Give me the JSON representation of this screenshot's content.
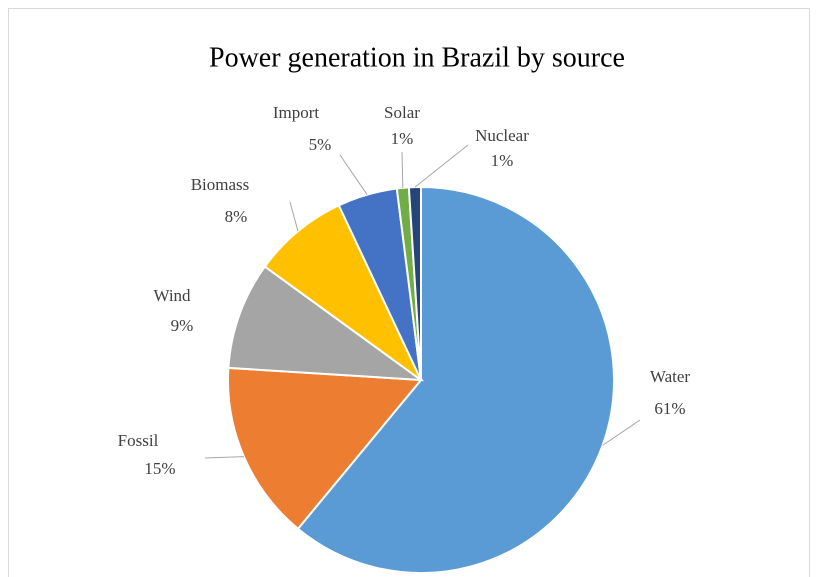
{
  "chart_data": {
    "type": "pie",
    "title": "Power generation in Brazil by source",
    "categories": [
      "Water",
      "Fossil",
      "Wind",
      "Biomass",
      "Import",
      "Solar",
      "Nuclear"
    ],
    "values": [
      61,
      15,
      9,
      8,
      5,
      1,
      1
    ],
    "value_labels": [
      "61%",
      "15%",
      "9%",
      "8%",
      "5%",
      "1%",
      "1%"
    ],
    "colors": [
      "#5b9bd5",
      "#ed7d31",
      "#a5a5a5",
      "#ffc000",
      "#4472c4",
      "#70ad47",
      "#264478"
    ]
  }
}
